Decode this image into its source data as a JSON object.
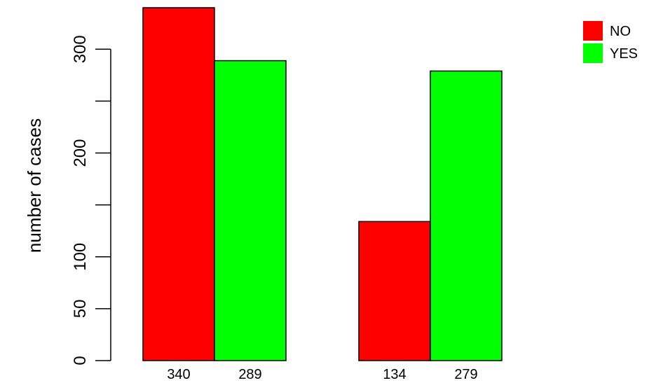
{
  "chart_data": {
    "type": "bar",
    "ylabel": "number of cases",
    "ylim": [
      0,
      340
    ],
    "yticks": [
      0,
      50,
      100,
      200,
      300
    ],
    "ytick_labels": [
      "0",
      "50",
      "100",
      "200",
      "300"
    ],
    "groups": [
      {
        "bars": [
          {
            "series": "NO",
            "value": 340,
            "label": "340"
          },
          {
            "series": "YES",
            "value": 289,
            "label": "289"
          }
        ]
      },
      {
        "bars": [
          {
            "series": "NO",
            "value": 134,
            "label": "134"
          },
          {
            "series": "YES",
            "value": 279,
            "label": "279"
          }
        ]
      }
    ],
    "series": [
      {
        "name": "NO",
        "color": "#ff0000"
      },
      {
        "name": "YES",
        "color": "#00ff00"
      }
    ],
    "legend": {
      "position": "top-right"
    },
    "grid": false
  }
}
